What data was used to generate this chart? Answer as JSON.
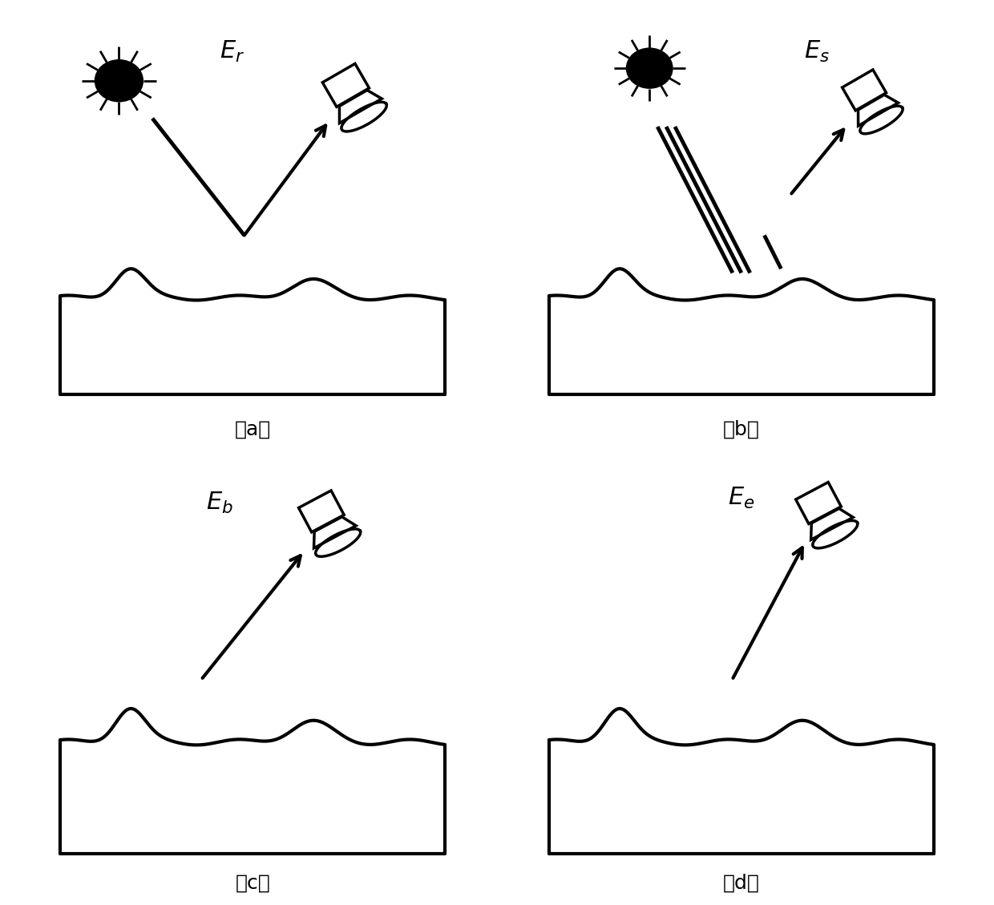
{
  "background_color": "#ffffff",
  "label_a": "（a）",
  "label_b": "（b）",
  "label_c": "（c）",
  "label_d": "（d）",
  "title_a": "$E_r$",
  "title_b": "$E_s$",
  "title_c": "$E_b$",
  "title_d": "$E_e$",
  "label_fontsize": 18,
  "title_fontsize": 22
}
